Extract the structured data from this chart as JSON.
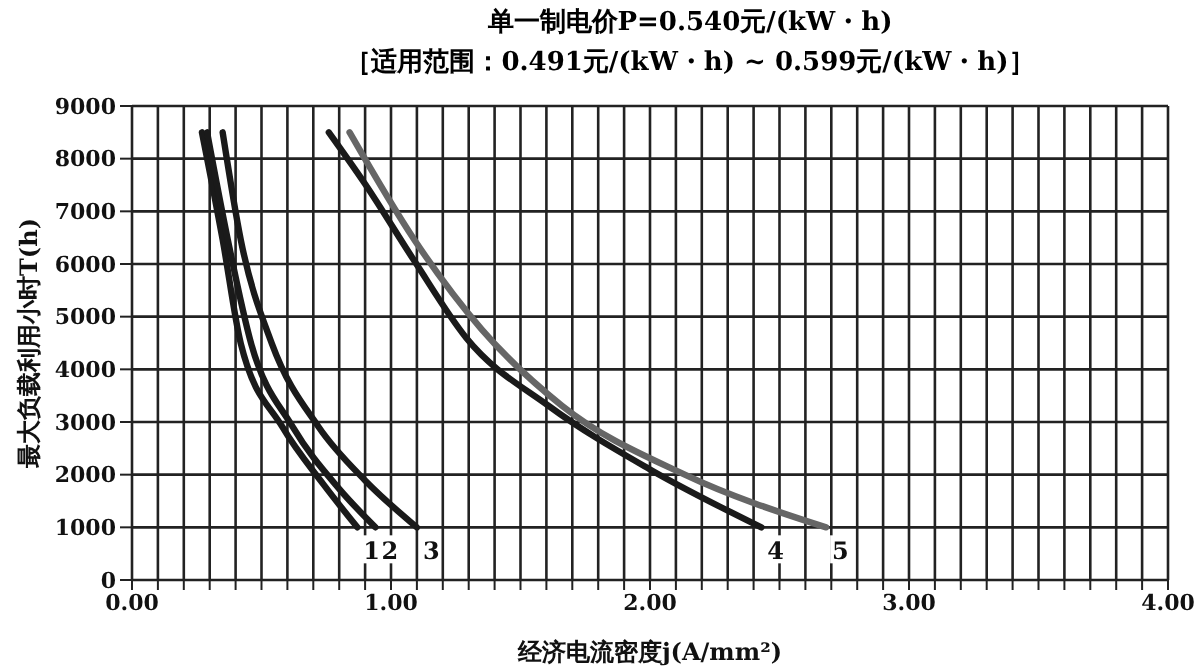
{
  "chart_data": {
    "type": "line",
    "title": "单一制电价P=0.540元/(kW・h)",
    "subtitle": "［适用范围：0.491元/(kW・h) ~ 0.599元/(kW・h)］",
    "xlabel": "经济电流密度j(A/mm²)",
    "ylabel": "最大负载利用小时T(h)",
    "series": [
      {
        "name": "1",
        "color": "#1a1a1a",
        "x": [
          0.27,
          0.35,
          0.42,
          0.58,
          0.74,
          0.87
        ],
        "values": [
          8500,
          6460,
          4490,
          2910,
          1810,
          1000
        ]
      },
      {
        "name": "2",
        "color": "#1a1a1a",
        "x": [
          0.29,
          0.37,
          0.46,
          0.62,
          0.8,
          0.94
        ],
        "values": [
          8500,
          6460,
          4490,
          2910,
          1730,
          1000
        ]
      },
      {
        "name": "3",
        "color": "#1a1a1a",
        "x": [
          0.35,
          0.42,
          0.54,
          0.72,
          0.9,
          1.1
        ],
        "values": [
          8500,
          6460,
          4490,
          2910,
          1890,
          1000
        ]
      },
      {
        "name": "4",
        "color": "#1a1a1a",
        "x": [
          0.76,
          0.9,
          1.09,
          1.29,
          1.61,
          2.0,
          2.43
        ],
        "values": [
          8500,
          7520,
          6060,
          4600,
          3300,
          2100,
          1000
        ]
      },
      {
        "name": "5",
        "color": "#666666",
        "x": [
          0.84,
          1.09,
          1.35,
          1.66,
          2.13,
          2.68
        ],
        "values": [
          8500,
          6460,
          4760,
          3310,
          2010,
          1000
        ]
      }
    ],
    "xlim": [
      0,
      4
    ],
    "ylim": [
      0,
      9000
    ],
    "xticks": [
      {
        "value": 0,
        "label": "0.00"
      },
      {
        "value": 0.1,
        "label": null
      },
      {
        "value": 0.2,
        "label": null
      },
      {
        "value": 0.3,
        "label": null
      },
      {
        "value": 0.4,
        "label": null
      },
      {
        "value": 0.5,
        "label": null
      },
      {
        "value": 0.6,
        "label": null
      },
      {
        "value": 0.7,
        "label": null
      },
      {
        "value": 0.8,
        "label": null
      },
      {
        "value": 0.9,
        "label": null
      },
      {
        "value": 1,
        "label": "1.00"
      },
      {
        "value": 1.1,
        "label": null
      },
      {
        "value": 1.2,
        "label": null
      },
      {
        "value": 1.3,
        "label": null
      },
      {
        "value": 1.4,
        "label": null
      },
      {
        "value": 1.5,
        "label": null
      },
      {
        "value": 1.6,
        "label": null
      },
      {
        "value": 1.7,
        "label": null
      },
      {
        "value": 1.8,
        "label": null
      },
      {
        "value": 1.9,
        "label": null
      },
      {
        "value": 2,
        "label": "2.00"
      },
      {
        "value": 2.1,
        "label": null
      },
      {
        "value": 2.2,
        "label": null
      },
      {
        "value": 2.3,
        "label": null
      },
      {
        "value": 2.4,
        "label": null
      },
      {
        "value": 2.5,
        "label": null
      },
      {
        "value": 2.6,
        "label": null
      },
      {
        "value": 2.7,
        "label": null
      },
      {
        "value": 2.8,
        "label": null
      },
      {
        "value": 2.9,
        "label": null
      },
      {
        "value": 3,
        "label": "3.00"
      },
      {
        "value": 3.1,
        "label": null
      },
      {
        "value": 3.2,
        "label": null
      },
      {
        "value": 3.3,
        "label": null
      },
      {
        "value": 3.4,
        "label": null
      },
      {
        "value": 3.5,
        "label": null
      },
      {
        "value": 3.6,
        "label": null
      },
      {
        "value": 3.7,
        "label": null
      },
      {
        "value": 3.8,
        "label": null
      },
      {
        "value": 3.9,
        "label": null
      },
      {
        "value": 4,
        "label": "4.00"
      }
    ],
    "yticks": [
      0,
      1000,
      2000,
      3000,
      4000,
      5000,
      6000,
      7000,
      8000,
      9000
    ],
    "grid": true,
    "legend": false,
    "marker": "none",
    "line_style": "solid"
  }
}
